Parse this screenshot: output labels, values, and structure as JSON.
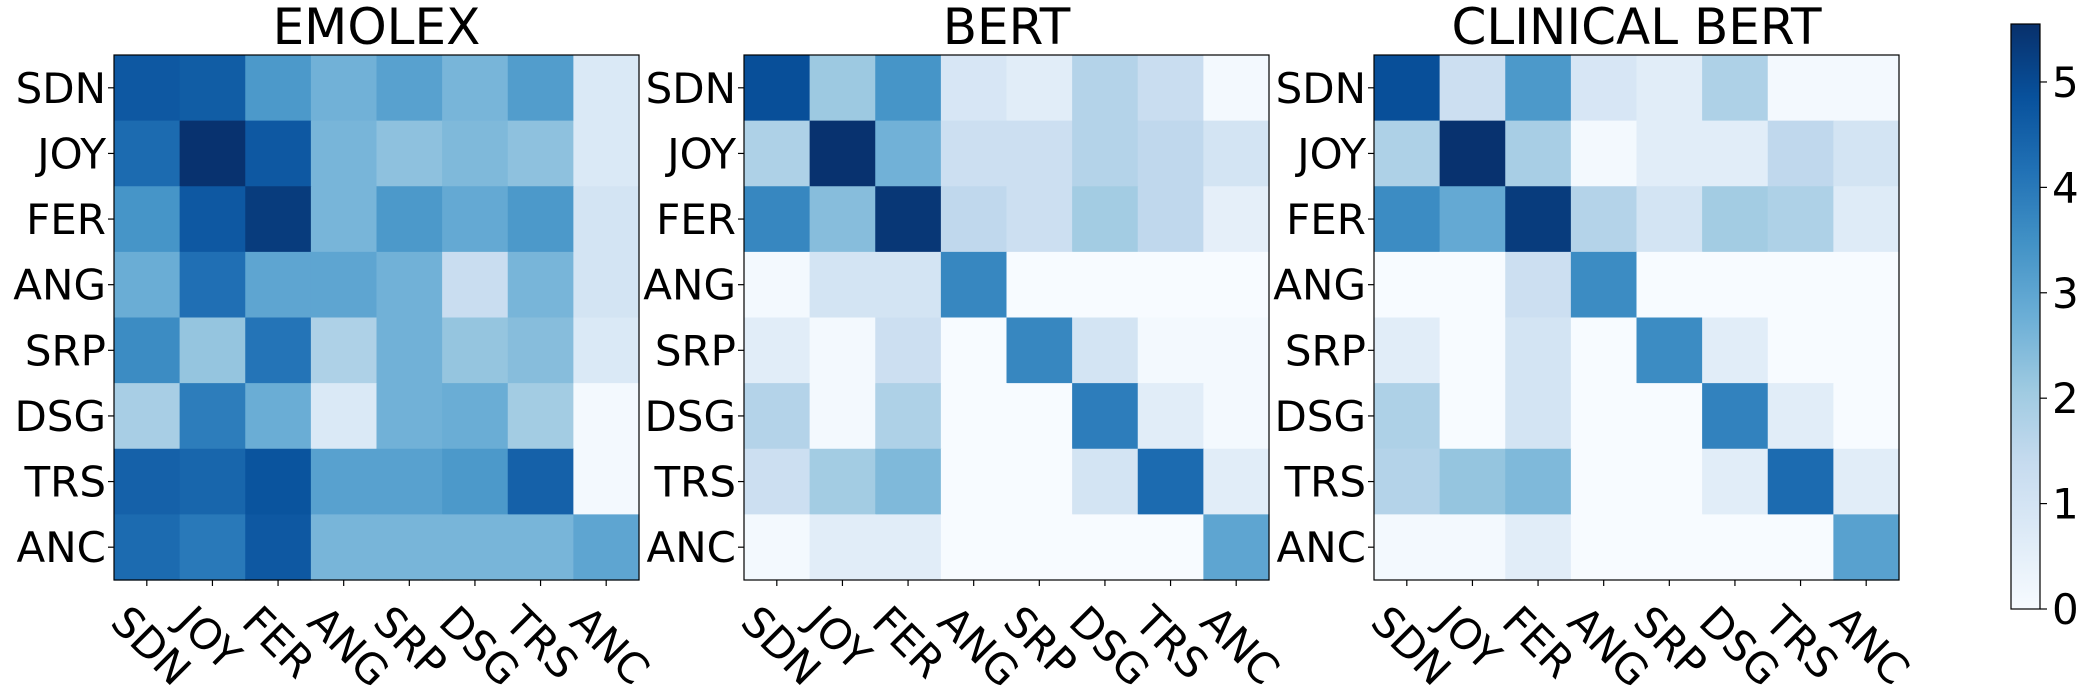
{
  "chart_data": [
    {
      "type": "heatmap",
      "title": "EMOLEX",
      "categories": [
        "SDN",
        "JOY",
        "FER",
        "ANG",
        "SRP",
        "DSG",
        "TRS",
        "ANC"
      ],
      "matrix": [
        [
          4.7,
          4.6,
          3.3,
          2.7,
          3.1,
          2.6,
          3.2,
          0.8
        ],
        [
          4.3,
          5.5,
          4.7,
          2.6,
          2.3,
          2.5,
          2.3,
          0.8
        ],
        [
          3.4,
          4.7,
          5.3,
          2.6,
          3.3,
          2.9,
          3.3,
          1.0
        ],
        [
          2.8,
          4.2,
          3.0,
          3.0,
          2.7,
          1.3,
          2.6,
          1.0
        ],
        [
          3.6,
          2.2,
          4.1,
          1.8,
          2.7,
          2.2,
          2.4,
          0.8
        ],
        [
          1.9,
          3.9,
          2.8,
          0.8,
          2.7,
          2.8,
          2.0,
          0.1
        ],
        [
          4.5,
          4.4,
          4.8,
          3.1,
          3.1,
          3.3,
          4.5,
          0.1
        ],
        [
          4.3,
          4.0,
          4.7,
          2.6,
          2.6,
          2.6,
          2.6,
          3.0
        ]
      ]
    },
    {
      "type": "heatmap",
      "title": "BERT",
      "categories": [
        "SDN",
        "JOY",
        "FER",
        "ANG",
        "SRP",
        "DSG",
        "TRS",
        "ANC"
      ],
      "matrix": [
        [
          4.9,
          2.1,
          3.4,
          0.9,
          0.6,
          1.7,
          1.3,
          0.1
        ],
        [
          1.8,
          5.5,
          2.7,
          1.2,
          1.2,
          1.7,
          1.5,
          1.0
        ],
        [
          3.7,
          2.4,
          5.4,
          1.5,
          1.2,
          2.0,
          1.5,
          0.5
        ],
        [
          0.1,
          1.0,
          1.0,
          3.7,
          0.0,
          0.0,
          0.0,
          0.0
        ],
        [
          0.6,
          0.1,
          1.2,
          0.0,
          3.7,
          1.0,
          0.1,
          0.1
        ],
        [
          1.7,
          0.1,
          1.8,
          0.0,
          0.0,
          3.9,
          0.6,
          0.1
        ],
        [
          1.2,
          2.0,
          2.5,
          0.0,
          0.0,
          1.0,
          4.3,
          0.6
        ],
        [
          0.1,
          0.6,
          0.6,
          0.0,
          0.0,
          0.0,
          0.0,
          3.0
        ]
      ]
    },
    {
      "type": "heatmap",
      "title": "CLINICAL BERT",
      "categories": [
        "SDN",
        "JOY",
        "FER",
        "ANG",
        "SRP",
        "DSG",
        "TRS",
        "ANC"
      ],
      "matrix": [
        [
          4.9,
          1.2,
          3.3,
          0.9,
          0.6,
          1.8,
          0.1,
          0.1
        ],
        [
          1.8,
          5.5,
          1.9,
          0.1,
          0.6,
          0.6,
          1.5,
          1.0
        ],
        [
          3.6,
          2.9,
          5.3,
          1.7,
          1.0,
          2.0,
          1.8,
          0.7
        ],
        [
          0.0,
          0.0,
          1.2,
          3.6,
          0.0,
          0.0,
          0.0,
          0.0
        ],
        [
          0.6,
          0.0,
          1.0,
          0.0,
          3.6,
          0.6,
          0.0,
          0.0
        ],
        [
          1.8,
          0.0,
          1.0,
          0.0,
          0.0,
          3.8,
          0.6,
          0.0
        ],
        [
          1.7,
          2.2,
          2.5,
          0.0,
          0.0,
          0.6,
          4.3,
          0.6
        ],
        [
          0.1,
          0.1,
          0.6,
          0.0,
          0.0,
          0.0,
          0.0,
          3.1
        ]
      ]
    }
  ],
  "colorbar": {
    "colormap": "Blues",
    "vmin": 0,
    "vmax": 5.55,
    "ticks": [
      "0",
      "1",
      "2",
      "3",
      "4",
      "5"
    ]
  }
}
